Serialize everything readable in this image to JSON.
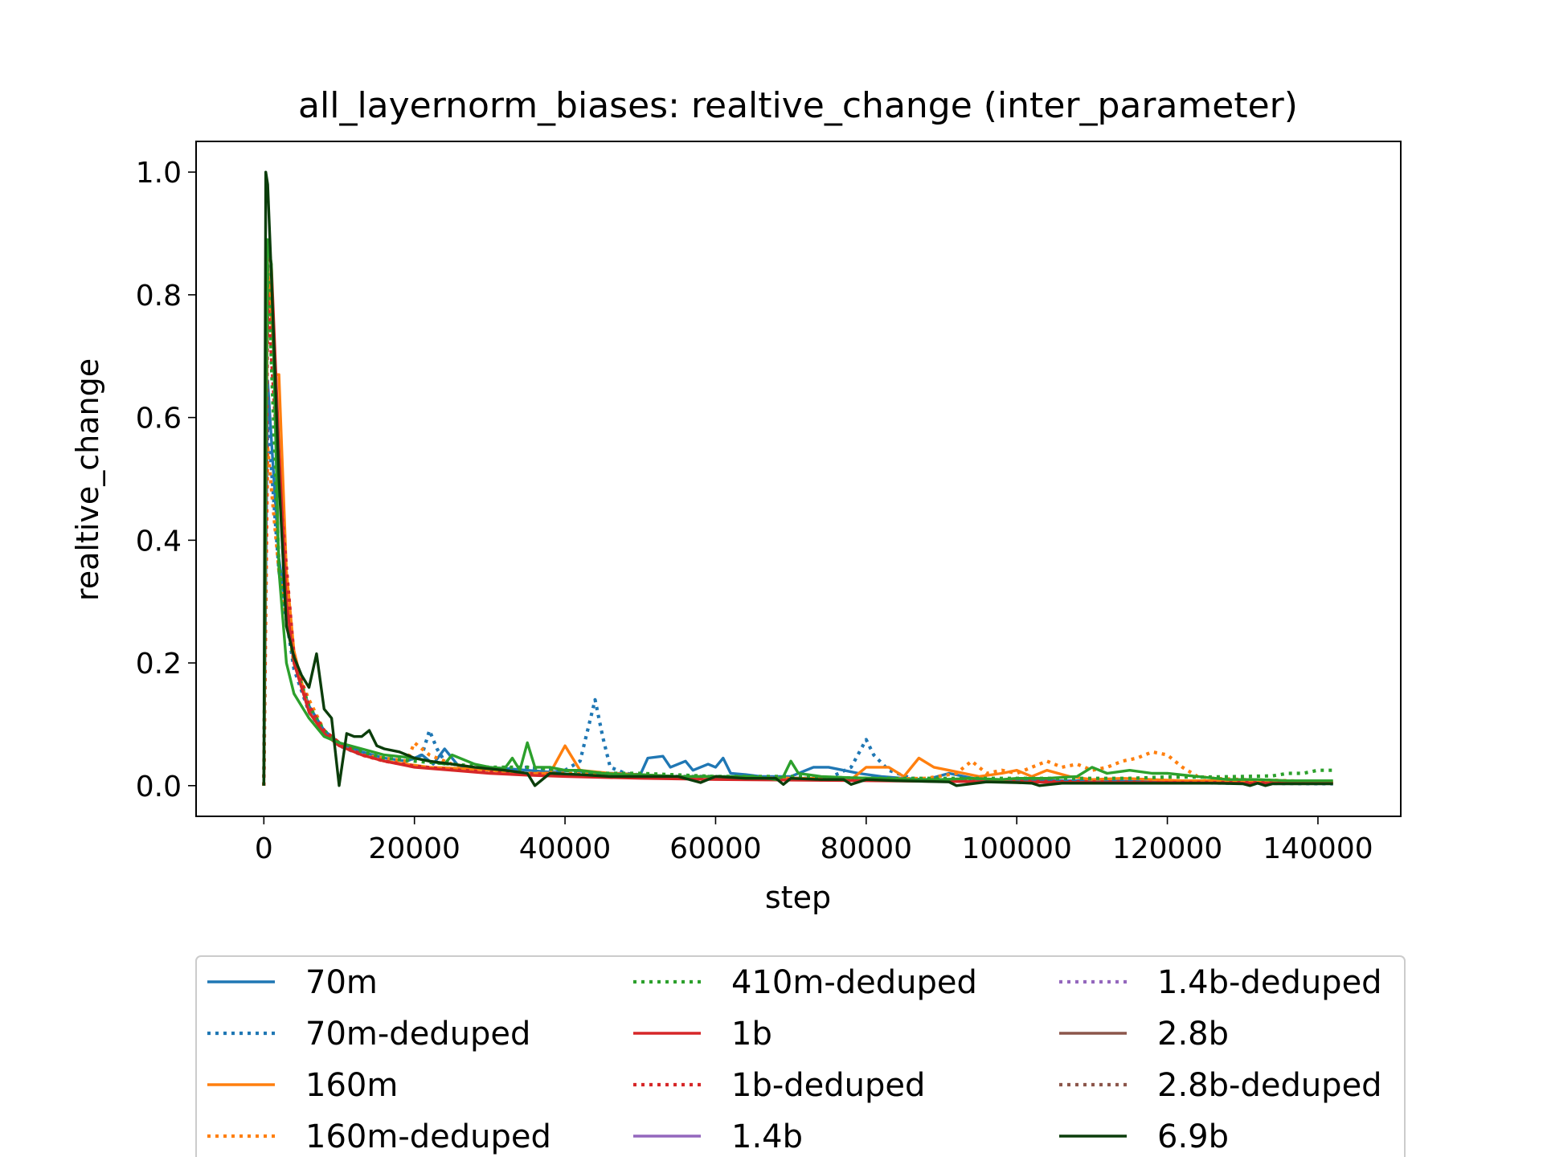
{
  "chart_data": {
    "type": "line",
    "title": "all_layernorm_biases: realtive_change (inter_parameter)",
    "xlabel": "step",
    "ylabel": "realtive_change",
    "xlim": [
      -9000,
      151000
    ],
    "ylim": [
      -0.05,
      1.05
    ],
    "xticks": [
      0,
      20000,
      40000,
      60000,
      80000,
      100000,
      120000,
      140000
    ],
    "yticks": [
      0.0,
      0.2,
      0.4,
      0.6,
      0.8,
      1.0
    ],
    "ytick_labels": [
      "0.0",
      "0.2",
      "0.4",
      "0.6",
      "0.8",
      "1.0"
    ],
    "legend_position": "bottom, outside plot, 3 columns",
    "series": [
      {
        "name": "70m",
        "color": "#1f77b4",
        "dash": "solid",
        "x": [
          0,
          512,
          2000,
          4000,
          6000,
          8000,
          10000,
          13000,
          16000,
          19000,
          21000,
          22500,
          24000,
          26000,
          28000,
          30000,
          32000,
          35000,
          38000,
          41000,
          44000,
          47000,
          50000,
          51000,
          53000,
          54000,
          56000,
          57000,
          59000,
          60000,
          61000,
          62000,
          64000,
          66000,
          68000,
          70000,
          72000,
          73000,
          75000,
          77000,
          79000,
          82000,
          85000,
          88000,
          91000,
          95000,
          100000,
          110000,
          120000,
          130000,
          142000
        ],
        "y": [
          0,
          0.66,
          0.37,
          0.2,
          0.13,
          0.09,
          0.07,
          0.055,
          0.045,
          0.04,
          0.05,
          0.035,
          0.06,
          0.03,
          0.028,
          0.03,
          0.028,
          0.025,
          0.022,
          0.025,
          0.02,
          0.02,
          0.018,
          0.045,
          0.048,
          0.03,
          0.04,
          0.025,
          0.035,
          0.03,
          0.045,
          0.02,
          0.018,
          0.015,
          0.015,
          0.015,
          0.025,
          0.03,
          0.03,
          0.025,
          0.02,
          0.015,
          0.012,
          0.01,
          0.02,
          0.01,
          0.008,
          0.008,
          0.006,
          0.005,
          0.004
        ]
      },
      {
        "name": "70m-deduped",
        "color": "#1f77b4",
        "dash": "dotted",
        "x": [
          0,
          512,
          2000,
          4000,
          6000,
          8000,
          10000,
          13000,
          16000,
          19000,
          21000,
          22000,
          23000,
          24000,
          27000,
          30000,
          35000,
          40000,
          42000,
          44000,
          45000,
          46000,
          48000,
          52000,
          55000,
          60000,
          65000,
          70000,
          75000,
          78000,
          80000,
          81000,
          83000,
          86000,
          90000,
          100000,
          110000,
          120000,
          130000,
          142000
        ],
        "y": [
          0,
          0.6,
          0.35,
          0.19,
          0.12,
          0.085,
          0.065,
          0.05,
          0.045,
          0.04,
          0.05,
          0.09,
          0.06,
          0.04,
          0.03,
          0.025,
          0.03,
          0.025,
          0.04,
          0.14,
          0.08,
          0.03,
          0.02,
          0.015,
          0.015,
          0.015,
          0.012,
          0.012,
          0.012,
          0.03,
          0.075,
          0.05,
          0.025,
          0.012,
          0.01,
          0.008,
          0.006,
          0.005,
          0.004,
          0.003
        ]
      },
      {
        "name": "160m",
        "color": "#ff7f0e",
        "dash": "solid",
        "x": [
          0,
          512,
          1500,
          2000,
          3000,
          4000,
          6000,
          8000,
          10000,
          13000,
          16000,
          19000,
          22000,
          26000,
          30000,
          35000,
          38000,
          40000,
          42000,
          46000,
          50000,
          55000,
          60000,
          65000,
          70000,
          75000,
          78000,
          80000,
          83000,
          85000,
          87000,
          89000,
          91000,
          93000,
          95000,
          98000,
          100000,
          102000,
          104000,
          107000,
          110000,
          114000,
          118000,
          122000,
          126000,
          130000,
          135000,
          142000
        ],
        "y": [
          0,
          0.85,
          0.67,
          0.67,
          0.35,
          0.22,
          0.12,
          0.085,
          0.065,
          0.05,
          0.04,
          0.035,
          0.03,
          0.028,
          0.025,
          0.02,
          0.02,
          0.065,
          0.025,
          0.02,
          0.018,
          0.015,
          0.015,
          0.012,
          0.012,
          0.012,
          0.01,
          0.03,
          0.03,
          0.015,
          0.045,
          0.03,
          0.025,
          0.02,
          0.015,
          0.02,
          0.025,
          0.015,
          0.025,
          0.015,
          0.01,
          0.012,
          0.01,
          0.008,
          0.008,
          0.006,
          0.005,
          0.005
        ]
      },
      {
        "name": "160m-deduped",
        "color": "#ff7f0e",
        "dash": "dotted",
        "x": [
          0,
          512,
          2000,
          4000,
          6000,
          8000,
          10000,
          13000,
          16000,
          19000,
          20000,
          22000,
          25000,
          30000,
          35000,
          40000,
          50000,
          60000,
          70000,
          80000,
          88000,
          92000,
          94000,
          96000,
          98000,
          100000,
          102000,
          104000,
          106000,
          108000,
          110000,
          112000,
          114000,
          116000,
          118000,
          120000,
          122000,
          124000,
          126000,
          130000,
          136000,
          142000
        ],
        "y": [
          0,
          0.55,
          0.35,
          0.2,
          0.14,
          0.09,
          0.07,
          0.05,
          0.045,
          0.04,
          0.07,
          0.05,
          0.035,
          0.025,
          0.02,
          0.02,
          0.015,
          0.012,
          0.012,
          0.01,
          0.012,
          0.02,
          0.04,
          0.02,
          0.025,
          0.02,
          0.03,
          0.04,
          0.03,
          0.035,
          0.025,
          0.03,
          0.04,
          0.045,
          0.055,
          0.05,
          0.03,
          0.015,
          0.012,
          0.01,
          0.008,
          0.006
        ]
      },
      {
        "name": "410m-deduped",
        "color": "#2ca02c",
        "dash": "dotted",
        "x": [
          0,
          512,
          2000,
          4000,
          6000,
          8000,
          10000,
          13000,
          16000,
          20000,
          25000,
          30000,
          35000,
          40000,
          45000,
          50000,
          60000,
          70000,
          80000,
          90000,
          100000,
          110000,
          115000,
          120000,
          125000,
          130000,
          134000,
          136000,
          138000,
          140000,
          142000
        ],
        "y": [
          0,
          0.85,
          0.36,
          0.2,
          0.13,
          0.09,
          0.07,
          0.055,
          0.045,
          0.04,
          0.035,
          0.03,
          0.03,
          0.025,
          0.02,
          0.02,
          0.015,
          0.015,
          0.012,
          0.012,
          0.012,
          0.012,
          0.012,
          0.014,
          0.014,
          0.015,
          0.016,
          0.02,
          0.02,
          0.025,
          0.025
        ]
      },
      {
        "name": "1b",
        "color": "#d62728",
        "dash": "solid",
        "x": [
          0,
          512,
          1000,
          2000,
          3000,
          4000,
          6000,
          8000,
          10000,
          13000,
          16000,
          20000,
          25000,
          30000,
          35000,
          40000,
          50000,
          60000,
          70000,
          80000,
          90000,
          100000,
          110000,
          120000,
          130000,
          142000
        ],
        "y": [
          0,
          0.87,
          0.85,
          0.55,
          0.3,
          0.2,
          0.12,
          0.085,
          0.065,
          0.05,
          0.04,
          0.03,
          0.025,
          0.02,
          0.017,
          0.015,
          0.012,
          0.01,
          0.009,
          0.008,
          0.007,
          0.006,
          0.005,
          0.005,
          0.004,
          0.004
        ]
      },
      {
        "name": "1b-deduped",
        "color": "#d62728",
        "dash": "dotted",
        "x": [
          0,
          512,
          2000,
          4000,
          6000,
          8000,
          10000,
          13000,
          16000,
          20000,
          25000,
          30000,
          40000,
          50000,
          60000,
          70000,
          80000,
          90000,
          100000,
          110000,
          120000,
          130000,
          142000
        ],
        "y": [
          0,
          0.8,
          0.5,
          0.21,
          0.13,
          0.09,
          0.07,
          0.05,
          0.04,
          0.032,
          0.026,
          0.022,
          0.017,
          0.014,
          0.012,
          0.01,
          0.009,
          0.008,
          0.007,
          0.006,
          0.005,
          0.005,
          0.004
        ]
      },
      {
        "name": "1.4b",
        "color": "#9467bd",
        "dash": "solid",
        "x": [],
        "y": []
      },
      {
        "name": "1.4b-deduped",
        "color": "#9467bd",
        "dash": "dotted",
        "x": [],
        "y": []
      },
      {
        "name": "2.8b",
        "color": "#8c564b",
        "dash": "solid",
        "x": [],
        "y": []
      },
      {
        "name": "2.8b-deduped",
        "color": "#8c564b",
        "dash": "dotted",
        "x": [],
        "y": []
      },
      {
        "name": "410m-green-solid",
        "legend": false,
        "color": "#2ca02c",
        "dash": "solid",
        "x": [
          0,
          256,
          512,
          1000,
          2000,
          3000,
          4000,
          6000,
          8000,
          10000,
          13000,
          16000,
          20000,
          22000,
          24000,
          25000,
          28000,
          30000,
          32000,
          33000,
          34000,
          35000,
          36000,
          38000,
          40000,
          42000,
          45000,
          48000,
          50000,
          55000,
          60000,
          65000,
          68000,
          69000,
          70000,
          71000,
          74000,
          78000,
          82000,
          86000,
          90000,
          94000,
          98000,
          100000,
          104000,
          108000,
          110000,
          112000,
          115000,
          118000,
          120000,
          124000,
          128000,
          132000,
          136000,
          140000,
          142000
        ],
        "y": [
          0,
          0.5,
          0.89,
          0.85,
          0.35,
          0.2,
          0.15,
          0.11,
          0.08,
          0.07,
          0.06,
          0.05,
          0.045,
          0.04,
          0.035,
          0.05,
          0.035,
          0.03,
          0.028,
          0.045,
          0.025,
          0.07,
          0.03,
          0.03,
          0.025,
          0.025,
          0.02,
          0.018,
          0.018,
          0.015,
          0.015,
          0.015,
          0.01,
          0.015,
          0.04,
          0.02,
          0.015,
          0.013,
          0.012,
          0.01,
          0.01,
          0.012,
          0.01,
          0.012,
          0.012,
          0.015,
          0.03,
          0.02,
          0.025,
          0.02,
          0.02,
          0.015,
          0.01,
          0.01,
          0.008,
          0.008,
          0.008
        ]
      },
      {
        "name": "6.9b",
        "color": "#0b3d0b",
        "dash": "solid",
        "x": [
          0,
          256,
          512,
          1000,
          2000,
          3000,
          4000,
          5000,
          6000,
          7000,
          8000,
          9000,
          10000,
          11000,
          12000,
          13000,
          14000,
          15000,
          16000,
          18000,
          20000,
          22000,
          25000,
          28000,
          32000,
          35000,
          36000,
          38000,
          42000,
          46000,
          50000,
          55000,
          58000,
          60000,
          64000,
          68000,
          69000,
          70000,
          74000,
          77000,
          78000,
          80000,
          84000,
          88000,
          91000,
          92000,
          96000,
          100000,
          102000,
          103000,
          106000,
          110000,
          114000,
          118000,
          122000,
          126000,
          130000,
          131000,
          132000,
          133000,
          134000,
          136000,
          140000,
          142000
        ],
        "y": [
          0,
          1.0,
          0.98,
          0.83,
          0.5,
          0.26,
          0.21,
          0.18,
          0.16,
          0.215,
          0.125,
          0.11,
          0.0,
          0.085,
          0.08,
          0.08,
          0.09,
          0.065,
          0.06,
          0.055,
          0.045,
          0.04,
          0.035,
          0.03,
          0.025,
          0.02,
          0.0,
          0.02,
          0.018,
          0.015,
          0.015,
          0.015,
          0.005,
          0.015,
          0.012,
          0.012,
          0.002,
          0.012,
          0.01,
          0.01,
          0.002,
          0.01,
          0.008,
          0.007,
          0.006,
          0.0,
          0.006,
          0.005,
          0.004,
          0.0,
          0.004,
          0.004,
          0.004,
          0.004,
          0.004,
          0.004,
          0.003,
          0.0,
          0.004,
          0.0,
          0.003,
          0.003,
          0.003,
          0.003
        ]
      }
    ],
    "legend_entries": [
      "70m",
      "70m-deduped",
      "160m",
      "160m-deduped",
      "410m-deduped",
      "1b",
      "1b-deduped",
      "1.4b",
      "1.4b-deduped",
      "2.8b",
      "2.8b-deduped",
      "6.9b"
    ]
  }
}
